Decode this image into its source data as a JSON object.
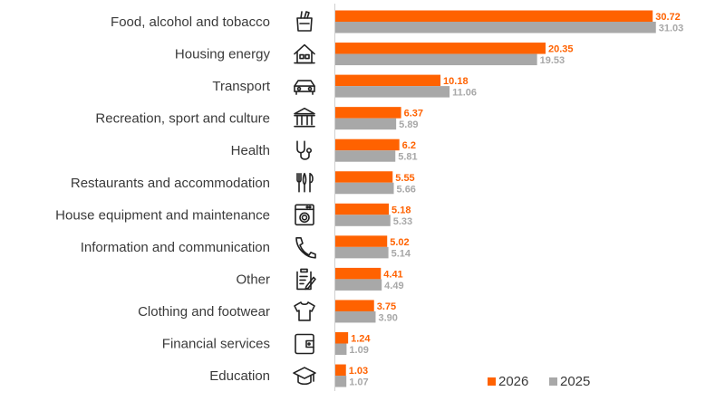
{
  "chart_data": {
    "type": "bar",
    "orientation": "horizontal",
    "categories": [
      "Food, alcohol and tobacco",
      "Housing energy",
      "Transport",
      "Recreation, sport and culture",
      "Health",
      "Restaurants and accommodation",
      "House equipment and maintenance",
      "Information and communication",
      "Other",
      "Clothing and footwear",
      "Financial services",
      "Education"
    ],
    "icons": [
      "shopping-bag-icon",
      "house-icon",
      "car-icon",
      "museum-icon",
      "stethoscope-icon",
      "cutlery-icon",
      "washing-machine-icon",
      "phone-icon",
      "clipboard-icon",
      "shirt-icon",
      "wallet-icon",
      "graduation-cap-icon"
    ],
    "series": [
      {
        "name": "2026",
        "color": "#ff6200",
        "values": [
          30.72,
          20.35,
          10.18,
          6.37,
          6.2,
          5.55,
          5.18,
          5.02,
          4.41,
          3.75,
          1.24,
          1.03
        ],
        "labels": [
          "30.72",
          "20.35",
          "10.18",
          "6.37",
          "6.2",
          "5.55",
          "5.18",
          "5.02",
          "4.41",
          "3.75",
          "1.24",
          "1.03"
        ]
      },
      {
        "name": "2025",
        "color": "#a8a8a8",
        "values": [
          31.03,
          19.53,
          11.06,
          5.89,
          5.81,
          5.66,
          5.33,
          5.14,
          4.49,
          3.9,
          1.09,
          1.07
        ],
        "labels": [
          "31.03",
          "19.53",
          "11.06",
          "5.89",
          "5.81",
          "5.66",
          "5.33",
          "5.14",
          "4.49",
          "3.90",
          "1.09",
          "1.07"
        ]
      }
    ],
    "legend_position": "bottom-right",
    "grid": false
  }
}
